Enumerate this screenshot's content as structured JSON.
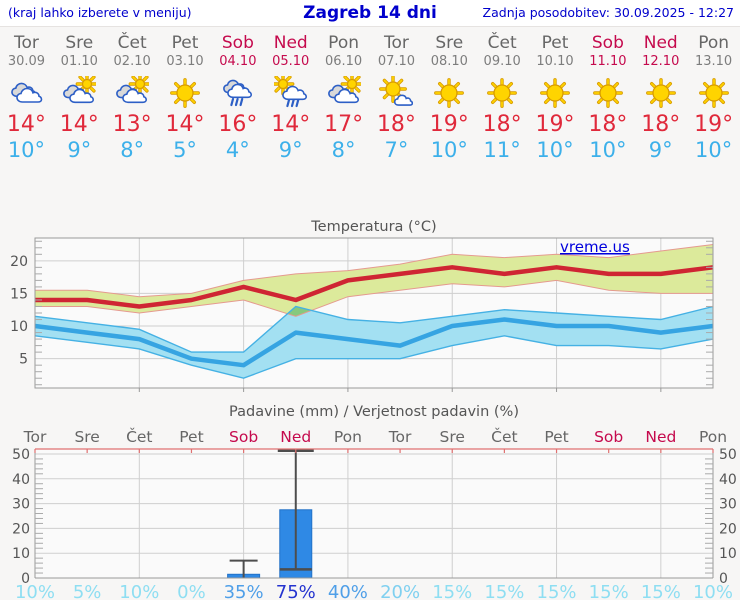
{
  "header": {
    "note": "(kraj lahko izberete v meniju)",
    "title": "Zagreb 14 dni",
    "updated": "Zadnja posodobitev: 30.09.2025 - 12:27"
  },
  "watermark": "vreme.us",
  "colors": {
    "header_blue": "#0000cc",
    "weekend": "#c50a4d",
    "weekday": "#666666",
    "tmax_red": "#e0293b",
    "tmin_blue": "#3cb0ea",
    "chart_red_line": "#cf2533",
    "chart_blue_line": "#36a4e2",
    "green_band": "#dcea9b",
    "green_band_edge": "#e59a8f",
    "blue_band": "#a3e0f2",
    "blue_band_edge": "#45b1e4",
    "band_overlap": "#86c97e",
    "grid": "#cfcfcf",
    "frame": "#999999",
    "axis_text": "#555555",
    "bar_blue": "#2f89e5",
    "whisker": "#4d4d4d",
    "precip_top_border": "#e07070",
    "plot_bg": "#fafafa"
  },
  "days": [
    {
      "name": "Tor",
      "date": "30.09",
      "weekend": false,
      "icon": "cloudy",
      "tmax": "14°",
      "tmin": "10°",
      "prob": "10%",
      "prob_color": "#8edef2"
    },
    {
      "name": "Sre",
      "date": "01.10",
      "weekend": false,
      "icon": "partly-sunny",
      "tmax": "14°",
      "tmin": "9°",
      "prob": "5%",
      "prob_color": "#8edef2"
    },
    {
      "name": "Čet",
      "date": "02.10",
      "weekend": false,
      "icon": "partly-sunny",
      "tmax": "13°",
      "tmin": "8°",
      "prob": "10%",
      "prob_color": "#8edef2"
    },
    {
      "name": "Pet",
      "date": "03.10",
      "weekend": false,
      "icon": "sunny",
      "tmax": "14°",
      "tmin": "5°",
      "prob": "0%",
      "prob_color": "#8edef2"
    },
    {
      "name": "Sob",
      "date": "04.10",
      "weekend": true,
      "icon": "rain",
      "tmax": "16°",
      "tmin": "4°",
      "prob": "35%",
      "prob_color": "#4f9fe8"
    },
    {
      "name": "Ned",
      "date": "05.10",
      "weekend": true,
      "icon": "sun-rain",
      "tmax": "14°",
      "tmin": "9°",
      "prob": "75%",
      "prob_color": "#2433cf"
    },
    {
      "name": "Pon",
      "date": "06.10",
      "weekend": false,
      "icon": "partly-sunny",
      "tmax": "17°",
      "tmin": "8°",
      "prob": "40%",
      "prob_color": "#4f9fe8"
    },
    {
      "name": "Tor",
      "date": "07.10",
      "weekend": false,
      "icon": "mostly-sunny",
      "tmax": "18°",
      "tmin": "7°",
      "prob": "20%",
      "prob_color": "#7fd0f0"
    },
    {
      "name": "Sre",
      "date": "08.10",
      "weekend": false,
      "icon": "sunny",
      "tmax": "19°",
      "tmin": "10°",
      "prob": "15%",
      "prob_color": "#8edef2"
    },
    {
      "name": "Čet",
      "date": "09.10",
      "weekend": false,
      "icon": "sunny",
      "tmax": "18°",
      "tmin": "11°",
      "prob": "15%",
      "prob_color": "#8edef2"
    },
    {
      "name": "Pet",
      "date": "10.10",
      "weekend": false,
      "icon": "sunny",
      "tmax": "19°",
      "tmin": "10°",
      "prob": "15%",
      "prob_color": "#8edef2"
    },
    {
      "name": "Sob",
      "date": "11.10",
      "weekend": true,
      "icon": "sunny",
      "tmax": "18°",
      "tmin": "10°",
      "prob": "15%",
      "prob_color": "#8edef2"
    },
    {
      "name": "Ned",
      "date": "12.10",
      "weekend": true,
      "icon": "sunny",
      "tmax": "18°",
      "tmin": "9°",
      "prob": "15%",
      "prob_color": "#8edef2"
    },
    {
      "name": "Pon",
      "date": "13.10",
      "weekend": false,
      "icon": "sunny",
      "tmax": "19°",
      "tmin": "10°",
      "prob": "10%",
      "prob_color": "#8edef2"
    }
  ],
  "chart_data": [
    {
      "type": "area",
      "title": "Temperatura (°C)",
      "categories": [
        "Tor",
        "Sre",
        "Čet",
        "Pet",
        "Sob",
        "Ned",
        "Pon",
        "Tor",
        "Sre",
        "Čet",
        "Pet",
        "Sob",
        "Ned",
        "Pon"
      ],
      "ylim": [
        0.5,
        23.5
      ],
      "yticks": [
        5,
        10,
        15,
        20
      ],
      "grid": true,
      "series": [
        {
          "name": "max_temp",
          "values": [
            14,
            14,
            13,
            14,
            16,
            14,
            17,
            18,
            19,
            18,
            19,
            18,
            18,
            19
          ]
        },
        {
          "name": "max_band_hi",
          "values": [
            15.5,
            15.5,
            14.5,
            15,
            17,
            18,
            18.5,
            19.5,
            21,
            20.5,
            21,
            20.5,
            21.5,
            22.5
          ]
        },
        {
          "name": "max_band_lo",
          "values": [
            13,
            13,
            12,
            13,
            14,
            11.5,
            14.5,
            15.5,
            16.5,
            16,
            17,
            15.5,
            15,
            15
          ]
        },
        {
          "name": "min_temp",
          "values": [
            10,
            9,
            8,
            5,
            4,
            9,
            8,
            7,
            10,
            11,
            10,
            10,
            9,
            10
          ]
        },
        {
          "name": "min_band_hi",
          "values": [
            11.5,
            10.5,
            9.5,
            6,
            6,
            13,
            11,
            10.5,
            11.5,
            12.5,
            12,
            11.5,
            11,
            13
          ]
        },
        {
          "name": "min_band_lo",
          "values": [
            8.5,
            7.5,
            6.5,
            4,
            2,
            5,
            5,
            5,
            7,
            8.5,
            7,
            7,
            6.5,
            8
          ]
        }
      ]
    },
    {
      "type": "bar",
      "title": "Padavine (mm) / Verjetnost padavin (%)",
      "categories": [
        "Tor",
        "Sre",
        "Čet",
        "Pet",
        "Sob",
        "Ned",
        "Pon",
        "Tor",
        "Sre",
        "Čet",
        "Pet",
        "Sob",
        "Ned",
        "Pon"
      ],
      "values_mm": [
        0,
        0,
        0,
        0,
        1.5,
        27.5,
        0,
        0,
        0,
        0,
        0,
        0,
        0,
        0
      ],
      "whiskers": [
        {
          "day_index": 4,
          "lo": 0,
          "hi": 7,
          "clipped": false
        },
        {
          "day_index": 5,
          "lo": 3.5,
          "hi": 52,
          "clipped": true
        }
      ],
      "probabilities_pct": [
        10,
        5,
        10,
        0,
        35,
        75,
        40,
        20,
        15,
        15,
        15,
        15,
        15,
        10
      ],
      "ylim": [
        0,
        52
      ],
      "yticks": [
        0,
        10,
        20,
        30,
        40,
        50
      ],
      "grid": true
    }
  ]
}
